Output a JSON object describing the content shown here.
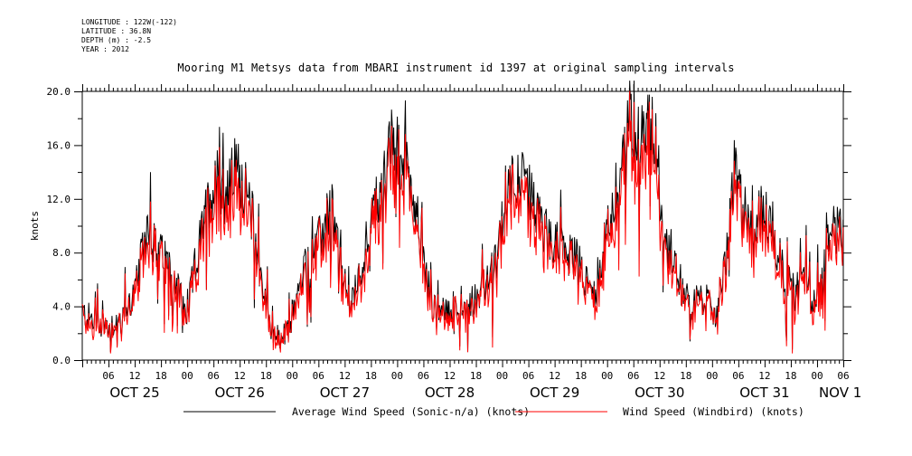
{
  "meta": {
    "longitude": "LONGITUDE : 122W(-122)",
    "latitude": "LATITUDE : 36.8N",
    "depth": "DEPTH (m) : -2.5",
    "year": "YEAR : 2012"
  },
  "chart_data": {
    "type": "line",
    "title": "Mooring M1 Metsys data from MBARI instrument id 1397 at original sampling intervals",
    "xlabel": "",
    "ylabel": "knots",
    "ylim": [
      0,
      20.0
    ],
    "yticks": [
      "0.0",
      "4.0",
      "8.0",
      "12.0",
      "16.0",
      "20.0"
    ],
    "xlim_hours": [
      0,
      174
    ],
    "hour_tick_labels": [
      "06",
      "12",
      "18",
      "00"
    ],
    "day_labels": [
      "OCT 25",
      "OCT 26",
      "OCT 27",
      "OCT 28",
      "OCT 29",
      "OCT 30",
      "OCT 31",
      "NOV 1"
    ],
    "grid": false,
    "legend_position": "bottom",
    "series": [
      {
        "name": "Average Wind Speed (Sonic-n/a) (knots)",
        "color": "#000000",
        "anchors": [
          [
            0,
            3.5
          ],
          [
            3,
            2.8
          ],
          [
            6,
            2.5
          ],
          [
            9,
            3.2
          ],
          [
            12,
            5.0
          ],
          [
            13,
            6.5
          ],
          [
            15,
            10.5
          ],
          [
            17,
            8.0
          ],
          [
            19,
            7.5
          ],
          [
            21,
            6.5
          ],
          [
            24,
            3.0
          ],
          [
            25,
            5.5
          ],
          [
            27,
            9.0
          ],
          [
            29,
            12.0
          ],
          [
            31,
            13.5
          ],
          [
            33,
            12.0
          ],
          [
            35,
            14.5
          ],
          [
            37,
            13.0
          ],
          [
            39,
            10.5
          ],
          [
            41,
            6.0
          ],
          [
            43,
            2.5
          ],
          [
            45,
            1.5
          ],
          [
            47,
            2.0
          ],
          [
            49,
            4.5
          ],
          [
            51,
            7.0
          ],
          [
            53,
            8.0
          ],
          [
            55,
            9.5
          ],
          [
            57,
            11.8
          ],
          [
            59,
            7.0
          ],
          [
            61,
            4.0
          ],
          [
            63,
            5.5
          ],
          [
            65,
            9.0
          ],
          [
            67,
            11.5
          ],
          [
            69,
            13.5
          ],
          [
            71,
            16.5
          ],
          [
            73,
            15.0
          ],
          [
            75,
            13.5
          ],
          [
            77,
            10.0
          ],
          [
            79,
            5.5
          ],
          [
            81,
            3.0
          ],
          [
            83,
            3.5
          ],
          [
            85,
            4.0
          ],
          [
            87,
            3.5
          ],
          [
            89,
            4.5
          ],
          [
            91,
            5.0
          ],
          [
            93,
            6.0
          ],
          [
            95,
            7.5
          ],
          [
            97,
            13.0
          ],
          [
            99,
            14.0
          ],
          [
            101,
            13.0
          ],
          [
            103,
            12.0
          ],
          [
            105,
            10.0
          ],
          [
            107,
            9.0
          ],
          [
            109,
            8.5
          ],
          [
            111,
            8.0
          ],
          [
            113,
            7.5
          ],
          [
            115,
            6.0
          ],
          [
            117,
            5.0
          ],
          [
            119,
            8.0
          ],
          [
            121,
            11.0
          ],
          [
            123,
            14.0
          ],
          [
            125,
            17.5
          ],
          [
            127,
            16.5
          ],
          [
            129,
            18.0
          ],
          [
            131,
            17.0
          ],
          [
            133,
            9.0
          ],
          [
            135,
            8.0
          ],
          [
            137,
            5.5
          ],
          [
            139,
            4.0
          ],
          [
            141,
            4.5
          ],
          [
            143,
            4.0
          ],
          [
            145,
            3.5
          ],
          [
            147,
            7.0
          ],
          [
            149,
            14.0
          ],
          [
            151,
            11.5
          ],
          [
            153,
            10.0
          ],
          [
            155,
            11.0
          ],
          [
            157,
            10.5
          ],
          [
            159,
            8.0
          ],
          [
            161,
            6.0
          ],
          [
            163,
            5.0
          ],
          [
            165,
            6.5
          ],
          [
            167,
            4.5
          ],
          [
            169,
            5.5
          ],
          [
            171,
            10.5
          ],
          [
            173,
            9.5
          ],
          [
            174,
            9.0
          ]
        ]
      },
      {
        "name": "Wind Speed (Windbird) (knots)",
        "color": "#ff0000",
        "anchors": []
      }
    ]
  },
  "legend": {
    "series0": "Average Wind Speed (Sonic-n/a) (knots)",
    "series1": "Wind Speed (Windbird) (knots)"
  }
}
